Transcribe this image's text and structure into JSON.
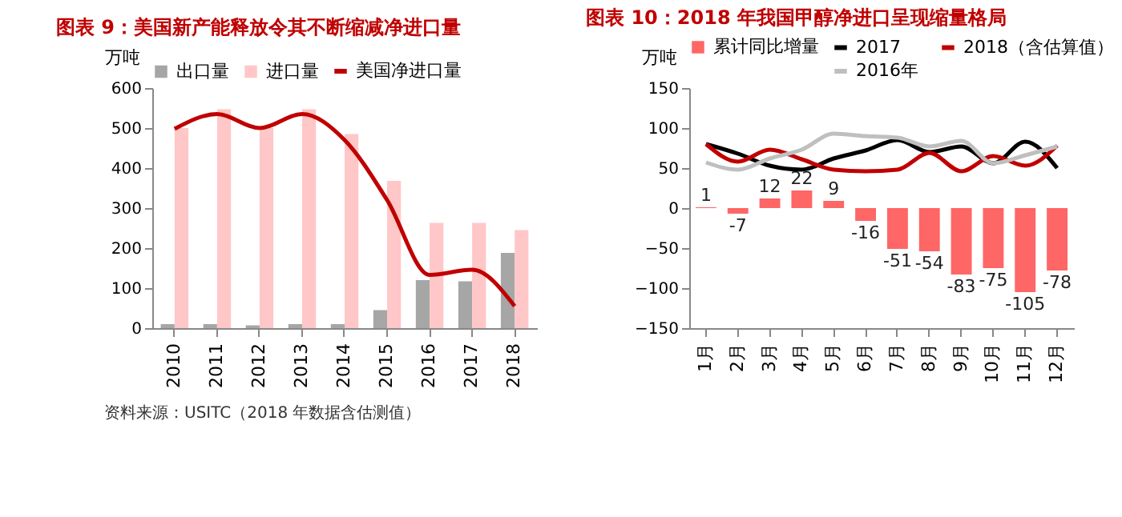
{
  "chart_data": [
    {
      "type": "bar",
      "title": "图表 9：美国新产能释放令其不断缩减净进口量",
      "ylabel": "万吨",
      "categories": [
        "2010",
        "2011",
        "2012",
        "2013",
        "2014",
        "2015",
        "2016",
        "2017",
        "2018"
      ],
      "series": [
        {
          "name": "出口量",
          "color": "#a6a6a6",
          "values": [
            10,
            10,
            7,
            10,
            10,
            45,
            120,
            117,
            188
          ]
        },
        {
          "name": "进口量",
          "color": "#ffc7c7",
          "values": [
            500,
            547,
            500,
            547,
            485,
            368,
            263,
            263,
            245
          ]
        },
        {
          "name": "美国净进口量",
          "type": "line",
          "color": "#c00000",
          "values": [
            498,
            535,
            500,
            535,
            470,
            320,
            133,
            146,
            55
          ]
        }
      ],
      "ylim": [
        0,
        600
      ],
      "yticks": [
        0,
        100,
        200,
        300,
        400,
        500,
        600
      ],
      "grid": false,
      "legend": "top",
      "annotations": [
        "资料来源：USITC（2018 年数据含估测值）"
      ]
    },
    {
      "type": "bar",
      "title": "图表 10：2018 年我国甲醇净进口呈现缩量格局",
      "ylabel": "万吨",
      "categories": [
        "1月",
        "2月",
        "3月",
        "4月",
        "5月",
        "6月",
        "7月",
        "8月",
        "9月",
        "10月",
        "11月",
        "12月"
      ],
      "series": [
        {
          "name": "累计同比增量",
          "color": "#ff6666",
          "values": [
            1,
            -7,
            12,
            22,
            9,
            -16,
            -51,
            -54,
            -83,
            -75,
            -105,
            -78
          ],
          "value_labels": [
            "1",
            "-7",
            "12",
            "22",
            "9",
            "-16",
            "-51",
            "-54",
            "-83",
            "-75",
            "-105",
            "-78"
          ]
        },
        {
          "name": "2017",
          "type": "line",
          "color": "#000000",
          "values": [
            80,
            68,
            53,
            48,
            62,
            72,
            85,
            70,
            77,
            56,
            83,
            50
          ]
        },
        {
          "name": "2018（含估算值）",
          "type": "line",
          "color": "#c00000",
          "values": [
            80,
            58,
            73,
            61,
            48,
            46,
            48,
            69,
            46,
            65,
            53,
            78
          ]
        },
        {
          "name": "2016年",
          "type": "line",
          "color": "#bfbfbf",
          "values": [
            57,
            48,
            62,
            73,
            93,
            90,
            88,
            77,
            84,
            56,
            66,
            77
          ]
        }
      ],
      "ylim": [
        -150,
        150
      ],
      "yticks": [
        -150,
        -100,
        -50,
        0,
        50,
        100,
        150
      ],
      "grid": false,
      "legend": "top"
    }
  ]
}
